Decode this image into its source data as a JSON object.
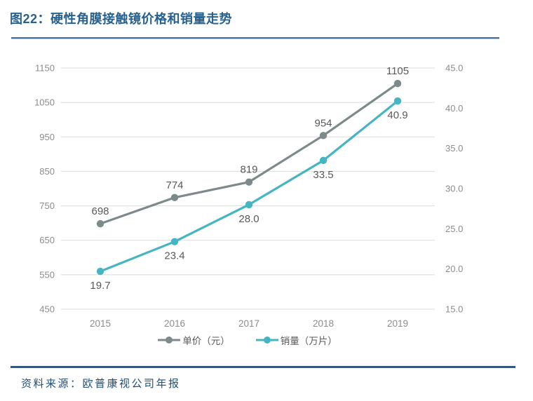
{
  "header": {
    "title": "图22：硬性角膜接触镜价格和销量走势"
  },
  "footer": {
    "source": "资料来源：欧普康视公司年报"
  },
  "colors": {
    "title_blue": "#27618f",
    "rule_top": "#46709d",
    "rule_bottom": "#35567e",
    "source_blue": "#1f4e79",
    "price_gray": "#7d8a8c",
    "sales_teal": "#45b5c2"
  },
  "chart_data": {
    "type": "line",
    "title": "硬性角膜接触镜价格和销量走势",
    "categories": [
      "2015",
      "2016",
      "2017",
      "2018",
      "2019"
    ],
    "series": [
      {
        "id": "price",
        "name": "单价（元）",
        "axis": "left",
        "values": [
          698,
          774,
          819,
          954,
          1105
        ],
        "labels": [
          "698",
          "774",
          "819",
          "954",
          "1105"
        ],
        "color": "#7d8a8c",
        "label_position": "above"
      },
      {
        "id": "sales",
        "name": "销量（万片）",
        "axis": "right",
        "values": [
          19.7,
          23.4,
          28.0,
          33.5,
          40.9
        ],
        "labels": [
          "19.7",
          "23.4",
          "28.0",
          "33.5",
          "40.9"
        ],
        "color": "#45b5c2",
        "label_position": "below"
      }
    ],
    "left_axis": {
      "range": [
        450,
        1150
      ],
      "ticks": [
        "1150",
        "1050",
        "950",
        "850",
        "750",
        "650",
        "550",
        "450"
      ]
    },
    "right_axis": {
      "range": [
        15,
        45
      ],
      "ticks": [
        "45.0",
        "40.0",
        "35.0",
        "30.0",
        "25.0",
        "20.0",
        "15.0"
      ]
    },
    "style": {
      "grid_color": "#dbdbdb",
      "axis_text_color": "#8c8c8c",
      "label_text_color": "#595959"
    },
    "grid": "horizontal",
    "legend_position": "bottom"
  }
}
